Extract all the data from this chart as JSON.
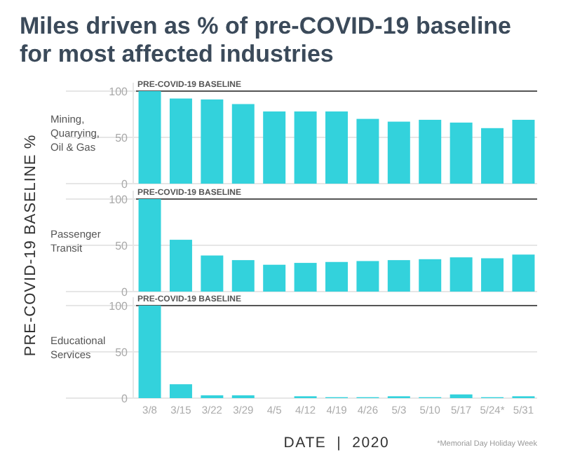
{
  "chart_data": [
    {
      "type": "bar",
      "title": "Miles driven as % of pre-COVID-19 baseline for most affected industries",
      "subtitle": "Mining, Quarrying, Oil & Gas",
      "categories": [
        null,
        null,
        null,
        null,
        null,
        null,
        null,
        null,
        null,
        null,
        null,
        null,
        null
      ],
      "values": [
        100,
        92,
        91,
        86,
        78,
        78,
        78,
        70,
        67,
        69,
        66,
        60,
        69
      ],
      "color": "#33d2dc",
      "ylim": [
        0,
        100
      ],
      "yticks": [
        0,
        50,
        100
      ],
      "grid": "y",
      "ref_lines": [
        {
          "axis": "y",
          "value": 100,
          "label": "PRE-COVID-19 BASELINE",
          "color": "#555555"
        }
      ]
    },
    {
      "type": "bar",
      "subtitle": "Passenger Transit",
      "ylabel": "PRE-COVID-19 BASELINE %",
      "categories": [
        null,
        null,
        null,
        null,
        null,
        null,
        null,
        null,
        null,
        null,
        null,
        null,
        null
      ],
      "values": [
        100,
        56,
        39,
        34,
        29,
        31,
        32,
        33,
        34,
        35,
        37,
        36,
        40
      ],
      "color": "#33d2dc",
      "ylim": [
        0,
        100
      ],
      "yticks": [
        0,
        50,
        100
      ],
      "grid": "y",
      "ref_lines": [
        {
          "axis": "y",
          "value": 100,
          "label": "PRE-COVID-19 BASELINE",
          "color": "#555555"
        }
      ]
    },
    {
      "type": "bar",
      "subtitle": "Educational Services",
      "xlabel": "DATE  |  2020",
      "annotations": [
        "*Memorial Day Holiday Week"
      ],
      "categories": [
        "3/8",
        "3/15",
        "3/22",
        "3/29",
        "4/5",
        "4/12",
        "4/19",
        "4/26",
        "5/3",
        "5/10",
        "5/17",
        "5/24*",
        "5/31"
      ],
      "values": [
        100,
        15,
        3,
        3,
        0,
        2,
        1,
        1,
        2,
        1,
        4,
        1,
        2
      ],
      "color": "#33d2dc",
      "ylim": [
        0,
        100
      ],
      "yticks": [
        0,
        50,
        100
      ],
      "grid": "y",
      "ref_lines": [
        {
          "axis": "y",
          "value": 100,
          "label": "PRE-COVID-19 BASELINE",
          "color": "#555555"
        }
      ]
    }
  ]
}
